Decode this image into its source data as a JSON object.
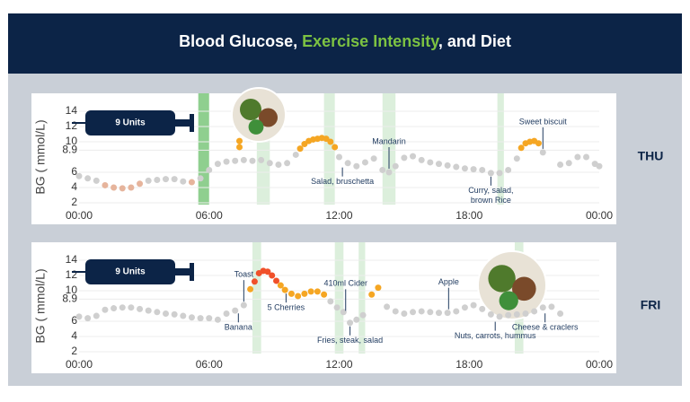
{
  "header": {
    "title_parts": [
      "Blood Glucose, ",
      "Exercise Intensity",
      ", and Diet"
    ]
  },
  "chart_data": [
    {
      "type": "scatter",
      "title": "THU",
      "y_label": "BG ( mmol/L)",
      "insulin": "9 Units",
      "xlim": [
        0,
        24
      ],
      "xticks": [
        {
          "value": 0,
          "label": "00:00"
        },
        {
          "value": 6,
          "label": "06:00"
        },
        {
          "value": 12,
          "label": "12:00"
        },
        {
          "value": 18,
          "label": "18:00"
        },
        {
          "value": 24,
          "label": "00:00"
        }
      ],
      "ylim": [
        2,
        14
      ],
      "yticks": [
        2,
        4,
        6,
        8.9,
        10,
        12,
        14
      ],
      "grid": true,
      "color_thresholds": [
        4.8,
        9,
        11
      ],
      "colors": [
        "#e6b49c",
        "#cfcfcf",
        "#f5a623",
        "#f0502a"
      ],
      "x": [
        0,
        0.4,
        0.8,
        1.2,
        1.6,
        2.0,
        2.4,
        2.8,
        3.2,
        3.6,
        4.0,
        4.4,
        4.8,
        5.2,
        5.6,
        6.0,
        6.4,
        6.8,
        7.2,
        7.4,
        7.4,
        7.6,
        8.0,
        8.4,
        8.8,
        9.2,
        9.6,
        10.0,
        10.2,
        10.4,
        10.6,
        10.8,
        11.0,
        11.2,
        11.4,
        11.6,
        11.8,
        12.0,
        12.4,
        12.8,
        13.2,
        13.6,
        14.0,
        14.3,
        14.6,
        15.0,
        15.4,
        15.8,
        16.2,
        16.6,
        17.0,
        17.4,
        17.8,
        18.2,
        18.6,
        19.0,
        19.4,
        19.8,
        20.2,
        20.4,
        20.6,
        20.8,
        21.0,
        21.2,
        21.4,
        22.2,
        22.6,
        23.0,
        23.4,
        23.8,
        24.0
      ],
      "values": [
        5.5,
        5.2,
        4.9,
        4.3,
        4.0,
        3.9,
        4.0,
        4.5,
        4.9,
        5.0,
        5.1,
        5.1,
        4.8,
        4.7,
        5.2,
        6.3,
        7.1,
        7.4,
        7.5,
        9.3,
        10.1,
        7.6,
        7.5,
        7.6,
        7.2,
        7.0,
        7.2,
        8.3,
        9.1,
        9.7,
        10.1,
        10.3,
        10.4,
        10.5,
        10.4,
        10.0,
        9.3,
        8.0,
        7.2,
        6.8,
        7.3,
        7.8,
        6.3,
        6.0,
        6.8,
        7.9,
        8.1,
        7.6,
        7.3,
        7.1,
        6.9,
        6.7,
        6.5,
        6.4,
        6.3,
        5.9,
        5.9,
        6.3,
        7.8,
        9.2,
        9.8,
        10.0,
        10.1,
        9.8,
        8.6,
        7.0,
        7.2,
        8.0,
        8.0,
        7.1,
        6.8
      ],
      "exercise": [
        {
          "start": 5.5,
          "end": 6.0,
          "color": "#8fcf8f"
        },
        {
          "start": 8.2,
          "end": 8.8,
          "color": "#dcefdc"
        },
        {
          "start": 11.3,
          "end": 11.8,
          "color": "#dcefdc"
        },
        {
          "start": 14.0,
          "end": 14.6,
          "color": "#dcefdc"
        },
        {
          "start": 19.3,
          "end": 19.6,
          "color": "#dcefdc"
        }
      ],
      "annotations": [
        {
          "lines": [
            "Salad, bruschetta"
          ],
          "x": 12.15,
          "y": 7.1,
          "position": "below"
        },
        {
          "lines": [
            "Mandarin"
          ],
          "x": 14.3,
          "y": 6.0,
          "position": "above"
        },
        {
          "lines": [
            "Curry, salad,",
            "brown Rice"
          ],
          "x": 19.0,
          "y": 5.9,
          "position": "below"
        },
        {
          "lines": [
            "Sweet biscuit"
          ],
          "x": 21.4,
          "y": 8.6,
          "position": "above"
        }
      ]
    },
    {
      "type": "scatter",
      "title": "FRI",
      "y_label": "BG ( mmol/L)",
      "insulin": "9 Units",
      "xlim": [
        0,
        24
      ],
      "xticks": [
        {
          "value": 0,
          "label": "00:00"
        },
        {
          "value": 6,
          "label": "06:00"
        },
        {
          "value": 12,
          "label": "12:00"
        },
        {
          "value": 18,
          "label": "18:00"
        },
        {
          "value": 24,
          "label": "00:00"
        }
      ],
      "ylim": [
        2,
        14
      ],
      "yticks": [
        2,
        4,
        6,
        8.9,
        10,
        12,
        14
      ],
      "grid": true,
      "color_thresholds": [
        4.8,
        9,
        11
      ],
      "colors": [
        "#e6b49c",
        "#cfcfcf",
        "#f5a623",
        "#f0502a"
      ],
      "x": [
        0,
        0.4,
        0.8,
        1.2,
        1.6,
        2.0,
        2.4,
        2.8,
        3.2,
        3.6,
        4.0,
        4.4,
        4.8,
        5.2,
        5.6,
        6.0,
        6.4,
        6.8,
        7.2,
        7.6,
        7.9,
        8.1,
        8.3,
        8.5,
        8.7,
        8.9,
        9.1,
        9.3,
        9.5,
        9.8,
        10.1,
        10.4,
        10.7,
        11.0,
        11.3,
        11.6,
        11.9,
        12.2,
        12.5,
        12.8,
        13.1,
        13.5,
        13.8,
        14.2,
        14.6,
        15.0,
        15.4,
        15.8,
        16.2,
        16.6,
        17.0,
        17.4,
        17.8,
        18.2,
        18.6,
        19.0,
        19.4,
        19.8,
        20.2,
        20.6,
        21.0,
        21.4,
        21.8,
        22.2
      ],
      "values": [
        6.6,
        6.4,
        6.7,
        7.5,
        7.7,
        7.8,
        7.8,
        7.6,
        7.4,
        7.2,
        7.0,
        6.9,
        6.7,
        6.5,
        6.4,
        6.4,
        6.2,
        7.0,
        7.4,
        8.1,
        10.2,
        11.2,
        12.3,
        12.6,
        12.5,
        12.0,
        11.3,
        10.7,
        10.1,
        9.6,
        9.3,
        9.6,
        9.9,
        9.9,
        9.5,
        8.6,
        7.8,
        7.2,
        5.8,
        6.2,
        6.8,
        9.5,
        10.4,
        7.9,
        7.3,
        7.0,
        7.2,
        7.3,
        7.2,
        7.1,
        7.1,
        7.3,
        7.8,
        8.1,
        7.6,
        6.9,
        6.6,
        6.8,
        6.9,
        7.0,
        7.3,
        7.8,
        7.9,
        7.0
      ],
      "exercise": [
        {
          "start": 8.0,
          "end": 8.4,
          "color": "#dcefdc"
        },
        {
          "start": 11.8,
          "end": 12.2,
          "color": "#dcefdc"
        },
        {
          "start": 12.9,
          "end": 13.2,
          "color": "#dcefdc"
        },
        {
          "start": 20.1,
          "end": 20.5,
          "color": "#dcefdc"
        }
      ],
      "annotations": [
        {
          "lines": [
            "Toast"
          ],
          "x": 7.6,
          "y": 8.1,
          "position": "above"
        },
        {
          "lines": [
            "Banana"
          ],
          "x": 7.35,
          "y": 7.5,
          "position": "below"
        },
        {
          "lines": [
            "5 Cherries"
          ],
          "x": 9.55,
          "y": 10.1,
          "position": "below"
        },
        {
          "lines": [
            "410ml Cider"
          ],
          "x": 12.3,
          "y": 6.9,
          "position": "above"
        },
        {
          "lines": [
            "Fries, steak, salad"
          ],
          "x": 12.5,
          "y": 5.8,
          "position": "below"
        },
        {
          "lines": [
            "Apple"
          ],
          "x": 17.05,
          "y": 7.1,
          "position": "above"
        },
        {
          "lines": [
            "Nuts, carrots, hummus"
          ],
          "x": 19.2,
          "y": 6.4,
          "position": "below"
        },
        {
          "lines": [
            "Cheese & craclers"
          ],
          "x": 21.5,
          "y": 7.5,
          "position": "below"
        }
      ]
    }
  ]
}
